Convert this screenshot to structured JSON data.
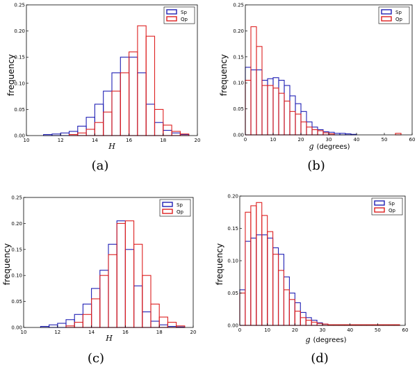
{
  "colors": {
    "sp": "#1f1fb4",
    "qp": "#dd1f1f",
    "frame": "#000000"
  },
  "chart_data": [
    {
      "id": "a",
      "type": "bar",
      "caption": "(a)",
      "xlabel": "H",
      "xlabel_style": "italic",
      "ylabel": "frequency",
      "xlim": [
        10,
        20
      ],
      "ylim": [
        0,
        0.25
      ],
      "xticks": [
        10,
        12,
        14,
        16,
        18,
        20
      ],
      "yticks": [
        0.0,
        0.05,
        0.1,
        0.15,
        0.2,
        0.25
      ],
      "ytick_labels": [
        "0.00",
        "0.05",
        "0.10",
        "0.15",
        "0.20",
        "0.25"
      ],
      "legend": [
        "Sp",
        "Qp"
      ],
      "legend_position": "top-right",
      "bin_width": 0.5,
      "series": [
        {
          "name": "Sp",
          "bin_starts": [
            11,
            11.5,
            12,
            12.5,
            13,
            13.5,
            14,
            14.5,
            15,
            15.5,
            16,
            16.5,
            17,
            17.5,
            18,
            18.5,
            19
          ],
          "values": [
            0.002,
            0.003,
            0.005,
            0.008,
            0.018,
            0.035,
            0.06,
            0.085,
            0.12,
            0.15,
            0.15,
            0.12,
            0.06,
            0.025,
            0.01,
            0.005,
            0.002
          ]
        },
        {
          "name": "Qp",
          "bin_starts": [
            12.5,
            13,
            13.5,
            14,
            14.5,
            15,
            15.5,
            16,
            16.5,
            17,
            17.5,
            18,
            18.5,
            19
          ],
          "values": [
            0.002,
            0.005,
            0.012,
            0.025,
            0.045,
            0.085,
            0.12,
            0.16,
            0.21,
            0.19,
            0.05,
            0.02,
            0.008,
            0.003
          ]
        }
      ]
    },
    {
      "id": "b",
      "type": "bar",
      "caption": "(b)",
      "xlabel_symbol": "g",
      "xlabel_unit": "(degrees)",
      "ylabel": "frequency",
      "xlim": [
        0,
        60
      ],
      "ylim": [
        0,
        0.25
      ],
      "xticks": [
        0,
        10,
        20,
        30,
        40,
        50,
        60
      ],
      "yticks": [
        0.0,
        0.05,
        0.1,
        0.15,
        0.2,
        0.25
      ],
      "ytick_labels": [
        "0.00",
        "0.05",
        "0.10",
        "0.15",
        "0.20",
        "0.25"
      ],
      "legend": [
        "Sp",
        "Qp"
      ],
      "legend_position": "top-right",
      "bin_width": 2,
      "series": [
        {
          "name": "Sp",
          "bin_starts": [
            0,
            2,
            4,
            6,
            8,
            10,
            12,
            14,
            16,
            18,
            20,
            22,
            24,
            26,
            28,
            30,
            32,
            34,
            36,
            38
          ],
          "values": [
            0.13,
            0.125,
            0.125,
            0.105,
            0.108,
            0.11,
            0.105,
            0.095,
            0.075,
            0.06,
            0.045,
            0.025,
            0.015,
            0.01,
            0.006,
            0.005,
            0.003,
            0.003,
            0.002,
            0.001
          ]
        },
        {
          "name": "Qp",
          "bin_starts": [
            0,
            2,
            4,
            6,
            8,
            10,
            12,
            14,
            16,
            18,
            20,
            22,
            24,
            26,
            28,
            30,
            54
          ],
          "values": [
            0.105,
            0.208,
            0.17,
            0.095,
            0.095,
            0.09,
            0.08,
            0.065,
            0.045,
            0.04,
            0.025,
            0.015,
            0.01,
            0.008,
            0.004,
            0.002,
            0.003
          ]
        }
      ]
    },
    {
      "id": "c",
      "type": "bar",
      "caption": "(c)",
      "xlabel": "H",
      "xlabel_style": "italic",
      "ylabel": "frequency",
      "xlim": [
        10,
        20
      ],
      "ylim": [
        0,
        0.25
      ],
      "xticks": [
        10,
        12,
        14,
        16,
        18,
        20
      ],
      "yticks": [
        0.0,
        0.05,
        0.1,
        0.15,
        0.2,
        0.25
      ],
      "ytick_labels": [
        "0.00",
        "0.05",
        "0.10",
        "0.15",
        "0.20",
        "0.25"
      ],
      "legend": [
        "Sp",
        "Qp"
      ],
      "legend_position": "top-right",
      "bin_width": 0.5,
      "series": [
        {
          "name": "Sp",
          "bin_starts": [
            11,
            11.5,
            12,
            12.5,
            13,
            13.5,
            14,
            14.5,
            15,
            15.5,
            16,
            16.5,
            17,
            17.5,
            18,
            18.5,
            19
          ],
          "values": [
            0.002,
            0.005,
            0.008,
            0.015,
            0.025,
            0.045,
            0.075,
            0.11,
            0.16,
            0.205,
            0.15,
            0.08,
            0.03,
            0.012,
            0.005,
            0.002,
            0.001
          ]
        },
        {
          "name": "Qp",
          "bin_starts": [
            12.5,
            13,
            13.5,
            14,
            14.5,
            15,
            15.5,
            16,
            16.5,
            17,
            17.5,
            18,
            18.5,
            19
          ],
          "values": [
            0.003,
            0.01,
            0.025,
            0.055,
            0.1,
            0.14,
            0.2,
            0.205,
            0.16,
            0.1,
            0.045,
            0.02,
            0.01,
            0.003
          ]
        }
      ]
    },
    {
      "id": "d",
      "type": "bar",
      "caption": "(d)",
      "xlabel_symbol": "g",
      "xlabel_unit": "(degrees)",
      "ylabel": "frequency",
      "xlim": [
        0,
        60
      ],
      "ylim": [
        0,
        0.2
      ],
      "xticks": [
        0,
        10,
        20,
        30,
        40,
        50,
        60
      ],
      "yticks": [
        0.0,
        0.05,
        0.1,
        0.15,
        0.2
      ],
      "ytick_labels": [
        "0.00",
        "0.05",
        "0.10",
        "0.15",
        "0.20"
      ],
      "legend": [
        "Sp",
        "Qp"
      ],
      "legend_position": "top-right",
      "bin_width": 2,
      "series": [
        {
          "name": "Sp",
          "bin_starts": [
            0,
            2,
            4,
            6,
            8,
            10,
            12,
            14,
            16,
            18,
            20,
            22,
            24,
            26,
            28,
            30
          ],
          "values": [
            0.055,
            0.13,
            0.135,
            0.14,
            0.14,
            0.135,
            0.12,
            0.11,
            0.075,
            0.05,
            0.035,
            0.02,
            0.012,
            0.008,
            0.004,
            0.002
          ]
        },
        {
          "name": "Qp",
          "bin_starts": [
            0,
            2,
            4,
            6,
            8,
            10,
            12,
            14,
            16,
            18,
            20,
            22,
            24,
            26,
            28,
            30,
            32,
            34,
            36,
            38,
            40,
            42,
            44,
            46,
            48,
            50,
            52,
            54,
            56
          ],
          "values": [
            0.05,
            0.175,
            0.185,
            0.19,
            0.17,
            0.145,
            0.11,
            0.085,
            0.055,
            0.04,
            0.022,
            0.012,
            0.008,
            0.005,
            0.003,
            0.002,
            0.001,
            0.001,
            0.001,
            0.001,
            0.001,
            0.001,
            0.001,
            0.001,
            0.001,
            0.001,
            0.001,
            0.001,
            0.001
          ]
        }
      ]
    }
  ]
}
